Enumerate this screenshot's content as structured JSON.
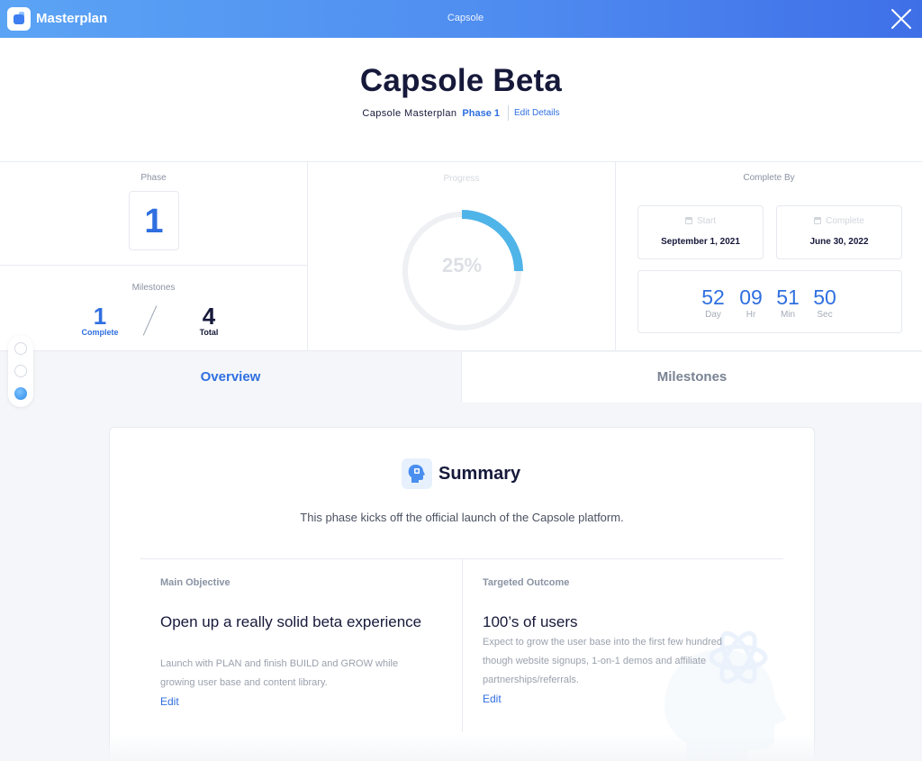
{
  "app": {
    "name": "Masterplan",
    "window_title": "Capsole"
  },
  "header": {
    "title": "Capsole Beta",
    "masterplan": "Capsole Masterplan",
    "phase": "Phase 1",
    "edit_details": "Edit Details"
  },
  "stats": {
    "phase_label": "Phase",
    "phase_value": "1",
    "milestones_label": "Milestones",
    "complete_count": "1",
    "complete_label": "Complete",
    "total_count": "4",
    "total_label": "Total",
    "progress_label": "Progress",
    "progress_text": "25%",
    "progress_fraction": 0.25,
    "complete_by_label": "Complete By",
    "start_label": "Start",
    "start_date": "September 1, 2021",
    "end_label": "Complete",
    "end_date": "June 30, 2022",
    "countdown": {
      "days": "52",
      "days_label": "Day",
      "hours": "09",
      "hours_label": "Hr",
      "minutes": "51",
      "minutes_label": "Min",
      "seconds": "50",
      "seconds_label": "Sec"
    }
  },
  "tabs": [
    {
      "label": "Overview",
      "active": true
    },
    {
      "label": "Milestones",
      "active": false
    }
  ],
  "summary": {
    "title": "Summary",
    "description": "This phase kicks off the official launch of the Capsole platform.",
    "objective": {
      "heading": "Main Objective",
      "title": "Open up a really solid beta experience",
      "description": "Launch with PLAN and finish BUILD and GROW while growing user base and content library.",
      "edit": "Edit"
    },
    "outcome": {
      "heading": "Targeted Outcome",
      "title": "100’s of users",
      "description": "Expect to grow the user base into the first few hundred though website signups, 1-on-1 demos and affiliate partnerships/referrals.",
      "edit": "Edit"
    }
  },
  "colors": {
    "accent": "#2f6fe0",
    "progress_ring": "#4fb4e8",
    "topbar_start": "#5ba4f5",
    "topbar_end": "#3f6fe8"
  }
}
